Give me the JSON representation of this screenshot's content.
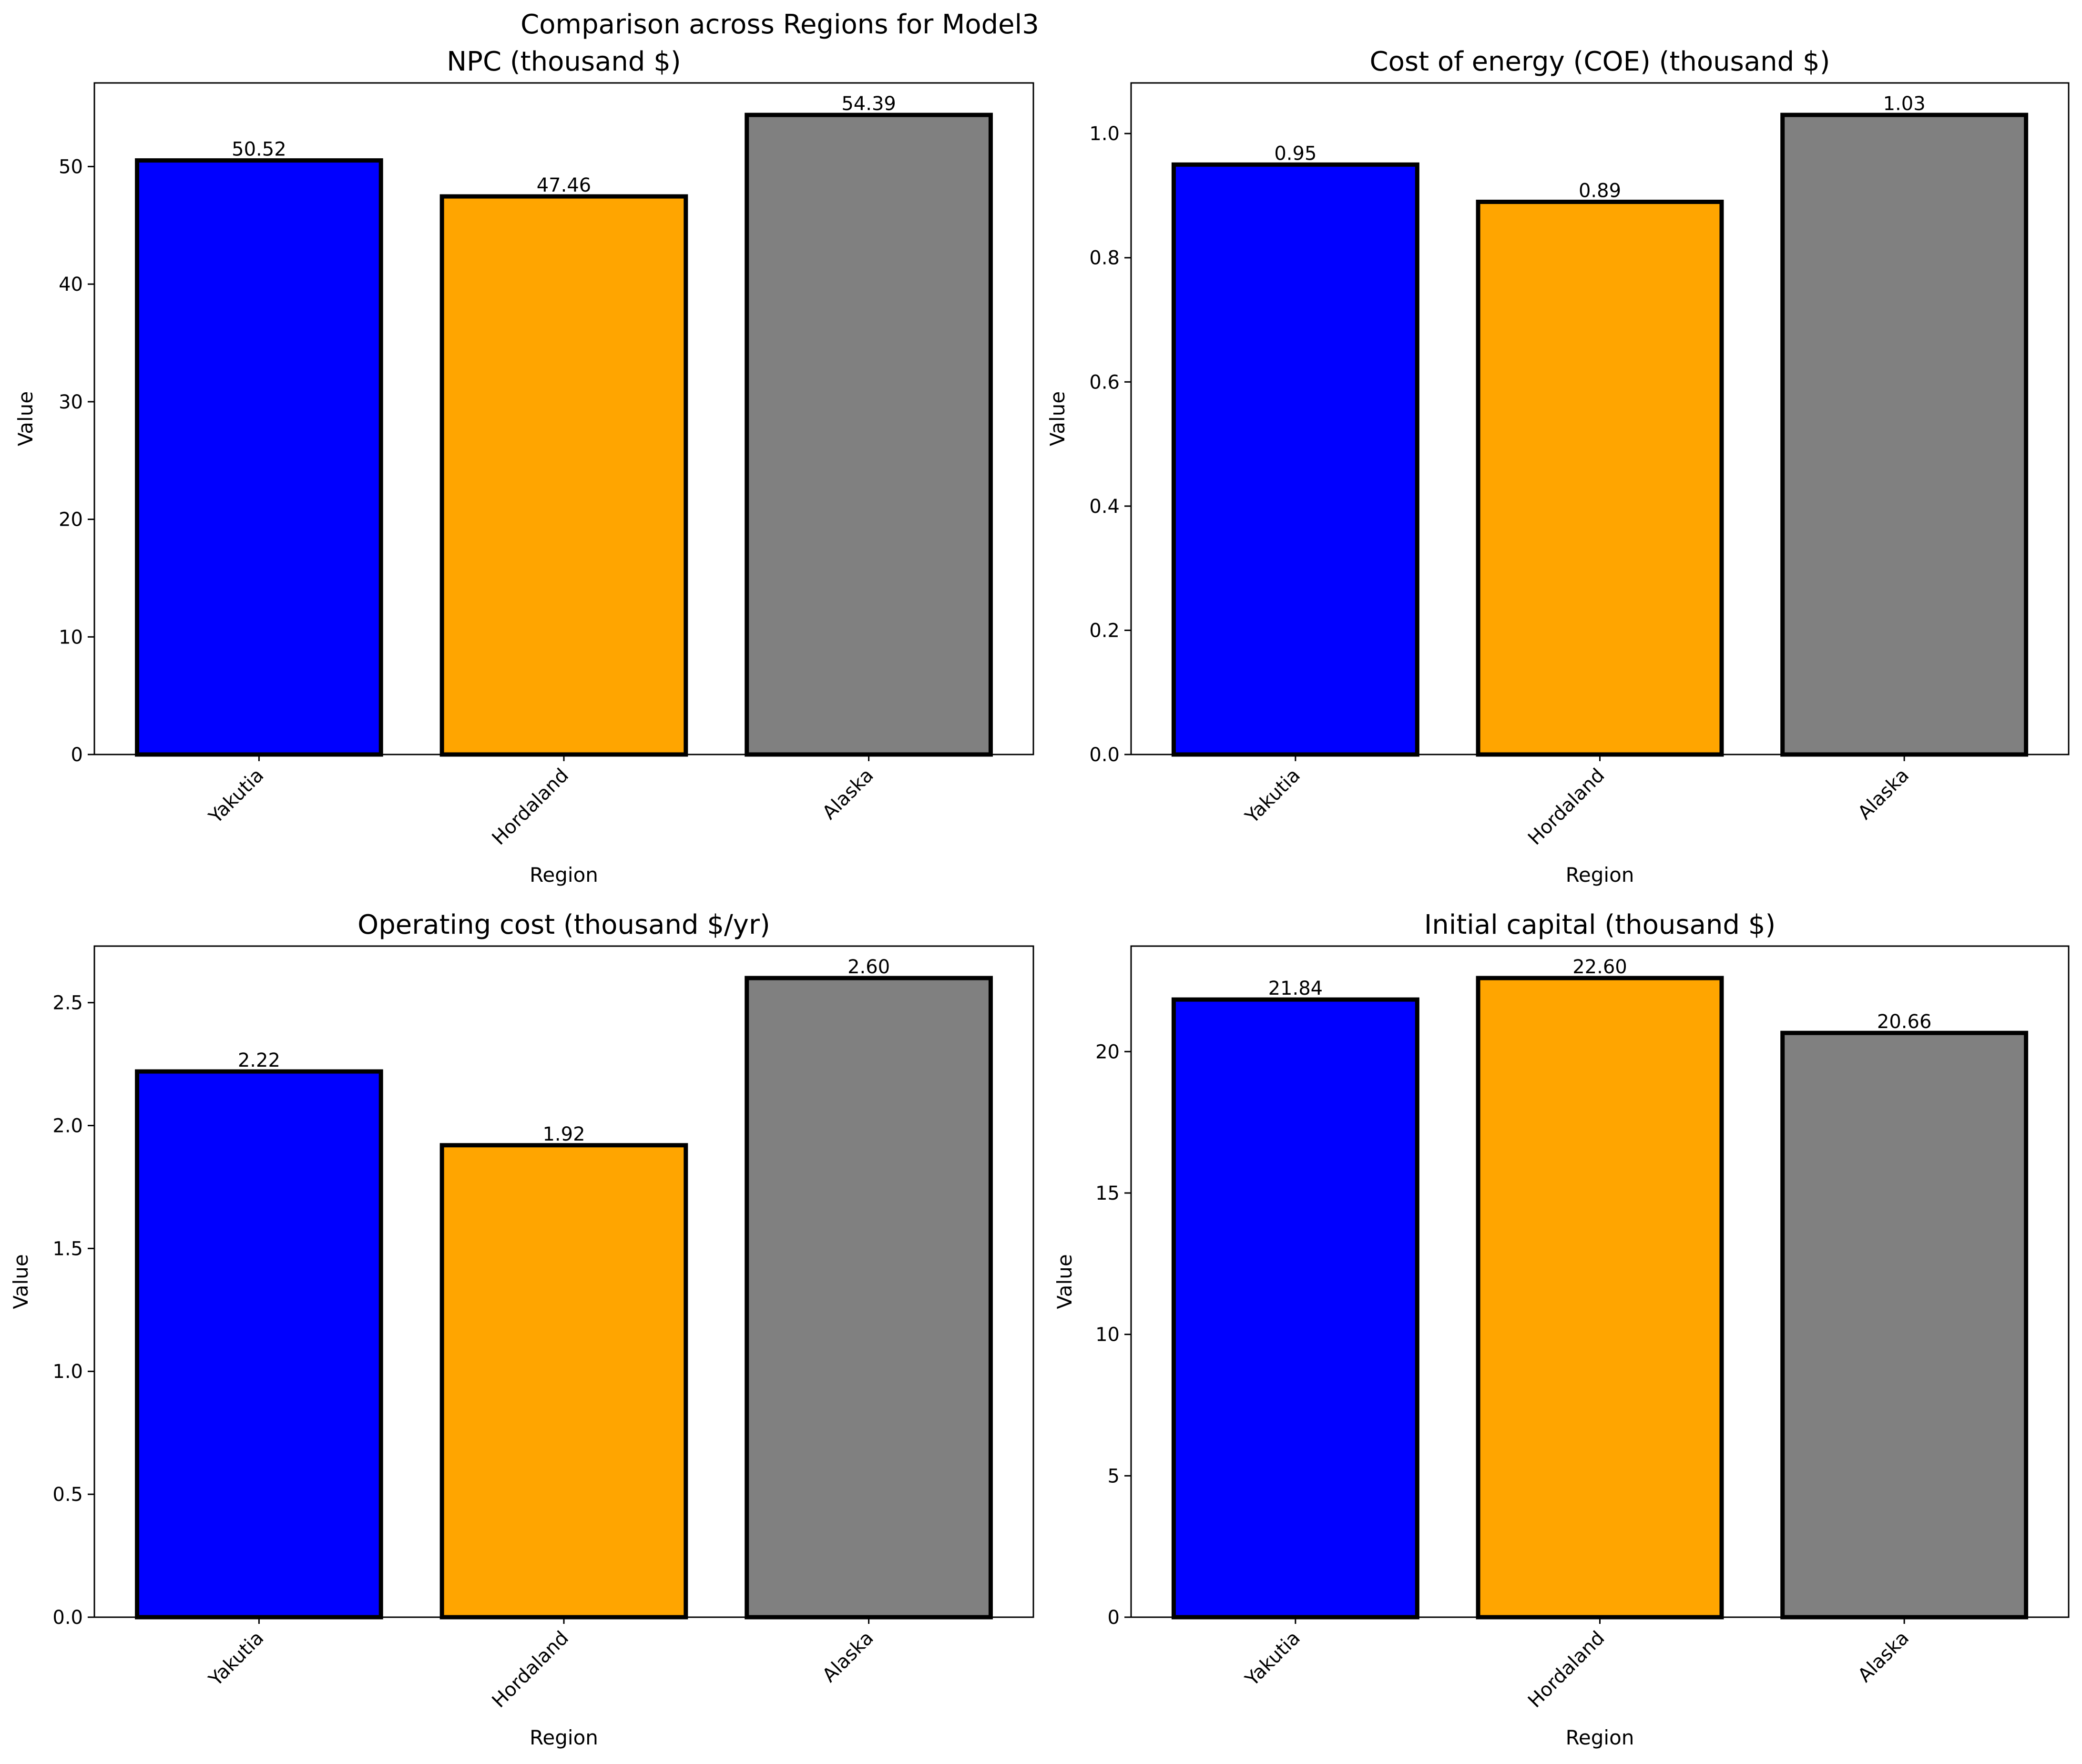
{
  "chart_data": {
    "suptitle": "Comparison across Regions for Model3",
    "charts": [
      {
        "type": "bar",
        "title": "NPC (thousand $)",
        "xlabel": "Region",
        "ylabel": "Value",
        "categories": [
          "Yakutia",
          "Hordaland",
          "Alaska"
        ],
        "values": [
          50.52,
          47.46,
          54.39
        ],
        "value_labels": [
          "50.52",
          "47.46",
          "54.39"
        ],
        "colors": [
          "#0000ff",
          "#ffa500",
          "#808080"
        ],
        "ylim": [
          0,
          57.11
        ],
        "yticks": [
          0,
          10,
          20,
          30,
          40,
          50
        ],
        "ytick_labels": [
          "0",
          "10",
          "20",
          "30",
          "40",
          "50"
        ]
      },
      {
        "type": "bar",
        "title": "Cost of energy (COE) (thousand $)",
        "xlabel": "Region",
        "ylabel": "Value",
        "categories": [
          "Yakutia",
          "Hordaland",
          "Alaska"
        ],
        "values": [
          0.95,
          0.89,
          1.03
        ],
        "value_labels": [
          "0.95",
          "0.89",
          "1.03"
        ],
        "colors": [
          "#0000ff",
          "#ffa500",
          "#808080"
        ],
        "ylim": [
          0,
          1.0815
        ],
        "yticks": [
          0,
          0.2,
          0.4,
          0.6,
          0.8,
          1.0
        ],
        "ytick_labels": [
          "0.0",
          "0.2",
          "0.4",
          "0.6",
          "0.8",
          "1.0"
        ]
      },
      {
        "type": "bar",
        "title": "Operating cost (thousand $/yr)",
        "xlabel": "Region",
        "ylabel": "Value",
        "categories": [
          "Yakutia",
          "Hordaland",
          "Alaska"
        ],
        "values": [
          2.22,
          1.92,
          2.6
        ],
        "value_labels": [
          "2.22",
          "1.92",
          "2.60"
        ],
        "colors": [
          "#0000ff",
          "#ffa500",
          "#808080"
        ],
        "ylim": [
          0,
          2.73
        ],
        "yticks": [
          0,
          0.5,
          1.0,
          1.5,
          2.0,
          2.5
        ],
        "ytick_labels": [
          "0.0",
          "0.5",
          "1.0",
          "1.5",
          "2.0",
          "2.5"
        ]
      },
      {
        "type": "bar",
        "title": "Initial capital (thousand $)",
        "xlabel": "Region",
        "ylabel": "Value",
        "categories": [
          "Yakutia",
          "Hordaland",
          "Alaska"
        ],
        "values": [
          21.84,
          22.6,
          20.66
        ],
        "value_labels": [
          "21.84",
          "22.60",
          "20.66"
        ],
        "colors": [
          "#0000ff",
          "#ffa500",
          "#808080"
        ],
        "ylim": [
          0,
          23.73
        ],
        "yticks": [
          0,
          5,
          10,
          15,
          20
        ],
        "ytick_labels": [
          "0",
          "5",
          "10",
          "15",
          "20"
        ]
      }
    ]
  }
}
